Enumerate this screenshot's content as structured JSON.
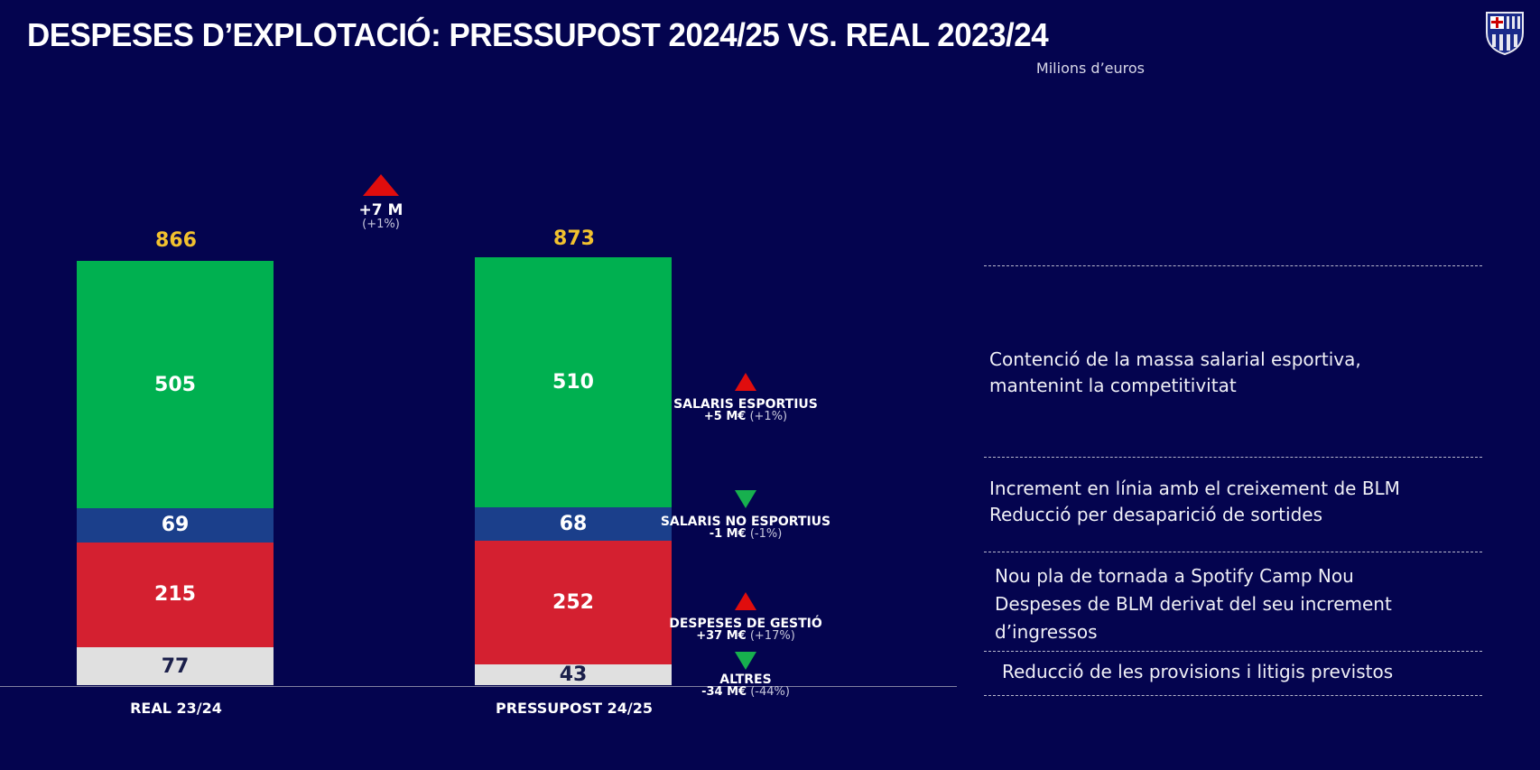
{
  "header": {
    "title": "DESPESES D’EXPLOTACIÓ: PRESSUPOST 2024/25 VS. REAL 2023/24",
    "units": "Milions d’euros",
    "logo": "FC Barcelona crest"
  },
  "chart_data": {
    "type": "stacked-bar",
    "categories": [
      "REAL 23/24",
      "PRESSUPOST 24/25"
    ],
    "totals": [
      866,
      873
    ],
    "series": [
      {
        "name": "SALARIS ESPORTIUS",
        "color": "#00b050",
        "values": [
          505,
          510
        ]
      },
      {
        "name": "SALARIS NO ESPORTIUS",
        "color": "#1b3f8b",
        "values": [
          69,
          68
        ]
      },
      {
        "name": "DESPESES DE GESTIÓ",
        "color": "#d42030",
        "values": [
          215,
          252
        ]
      },
      {
        "name": "ALTRES",
        "color": "#e0e0e0",
        "values": [
          77,
          43
        ]
      }
    ],
    "total_change": {
      "value": "+7 M",
      "pct": "(+1%)",
      "direction": "up"
    },
    "changes": [
      {
        "label": "SALARIS ESPORTIUS",
        "value": "+5 M€",
        "pct": "(+1%)",
        "direction": "up"
      },
      {
        "label": "SALARIS NO ESPORTIUS",
        "value": "-1 M€",
        "pct": "(-1%)",
        "direction": "down"
      },
      {
        "label": "DESPESES DE GESTIÓ",
        "value": "+37 M€",
        "pct": "(+17%)",
        "direction": "up"
      },
      {
        "label": "ALTRES",
        "value": "-34 M€",
        "pct": "(-44%)",
        "direction": "down"
      }
    ]
  },
  "notes": [
    {
      "lines": [
        "Contenció de la massa salarial esportiva,",
        "mantenint la competitivitat"
      ]
    },
    {
      "lines": [
        "Increment en línia amb el creixement de BLM",
        "Reducció per desaparició de sortides"
      ]
    },
    {
      "lines": [
        "Nou pla de tornada a Spotify Camp Nou",
        "Despeses de BLM derivat del seu increment",
        "d’ingressos"
      ]
    },
    {
      "lines": [
        "Reducció de les provisions i litigis previstos"
      ]
    }
  ]
}
